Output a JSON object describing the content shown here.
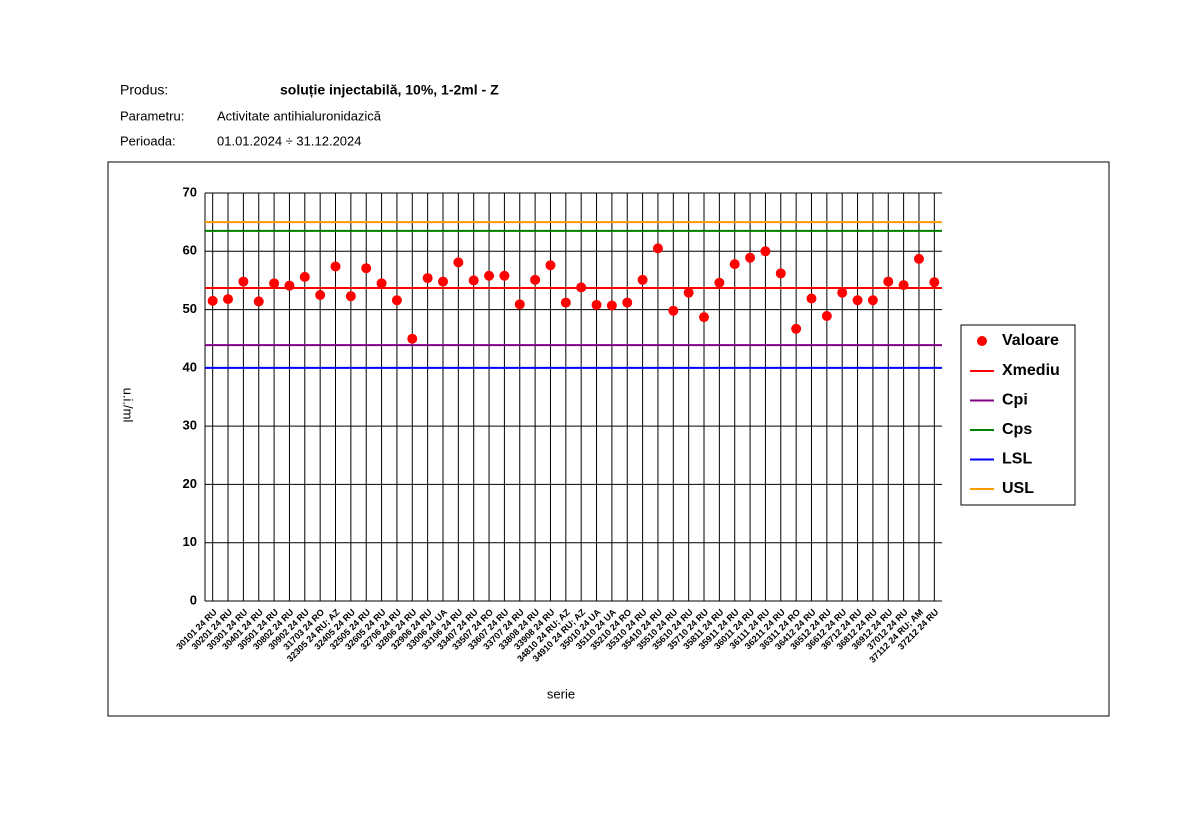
{
  "header": {
    "product_label": "Produs:",
    "product": "soluție injectabilă, 10%, 1-2ml - Z",
    "parameter_label": "Parametru:",
    "parameter": "Activitate antihialuronidazică",
    "period_label": "Perioada:",
    "period": "01.01.2024 ÷ 31.12.2024"
  },
  "chart_data": {
    "type": "scatter",
    "ylabel": "u.i./ml",
    "xlabel": "serie",
    "categories": [
      "30101 24 RU",
      "30201 24 RU",
      "30301 24 RU",
      "30401 24 RU",
      "30501 24 RU",
      "30802 24 RU",
      "30902 24 RU",
      "31703 24 RO",
      "32305 24 RU; AZ",
      "32405 24 RU",
      "32505 24 RU",
      "32605 24 RU",
      "32706 24 RU",
      "32806 24 RU",
      "32906 24 RU",
      "33006 24 UA",
      "33106 24 RU",
      "33407 24 RU",
      "33507 24 RO",
      "33607 24 RU",
      "33707 24 RU",
      "33808 24 RU",
      "33908 24 RU",
      "34810 24 RU; AZ",
      "34910 24 RU; AZ",
      "35010 24 UA",
      "35110 24 UA",
      "35210 24 RO",
      "35310 24 RU",
      "35410 24 RU",
      "35510 24 RU",
      "35610 24 RU",
      "35710 24 RU",
      "35811 24 RU",
      "35911 24 RU",
      "36011 24 RU",
      "36111 24 RU",
      "36211 24 RU",
      "36311 24 RO",
      "36412 24 RU",
      "36512 24 RU",
      "36612 24 RU",
      "36712 24 RU",
      "36812 24 RU",
      "36912 24 RU",
      "37012 24 RU",
      "37112 24 RU; AM",
      "37212 24 RU"
    ],
    "series": [
      {
        "name": "Valoare",
        "color": "#ff0000",
        "values": [
          51.5,
          51.8,
          54.8,
          51.4,
          54.5,
          54.1,
          55.6,
          52.5,
          57.4,
          52.3,
          57.1,
          54.5,
          51.6,
          45,
          55.4,
          54.8,
          58.1,
          55,
          55.8,
          55.8,
          50.9,
          55.1,
          57.6,
          51.2,
          53.8,
          50.8,
          50.7,
          51.2,
          55.1,
          60.5,
          49.8,
          52.9,
          48.7,
          54.6,
          57.8,
          58.9,
          60,
          56.2,
          46.7,
          51.9,
          48.9,
          52.9,
          51.6,
          51.6,
          54.8,
          54.2,
          58.7,
          54.7
        ]
      }
    ],
    "lines": [
      {
        "name": "Xmediu",
        "color": "#ff0000",
        "value": 53.7
      },
      {
        "name": "Cpi",
        "color": "#800080",
        "value": 43.9
      },
      {
        "name": "Cps",
        "color": "#008000",
        "value": 63.5
      },
      {
        "name": "LSL",
        "color": "#0000ff",
        "value": 40
      },
      {
        "name": "USL",
        "color": "#ff9900",
        "value": 65
      }
    ],
    "ylim": [
      0,
      70
    ],
    "yticks": [
      0,
      10,
      20,
      30,
      40,
      50,
      60,
      70
    ],
    "grid": true,
    "legend": "right"
  }
}
